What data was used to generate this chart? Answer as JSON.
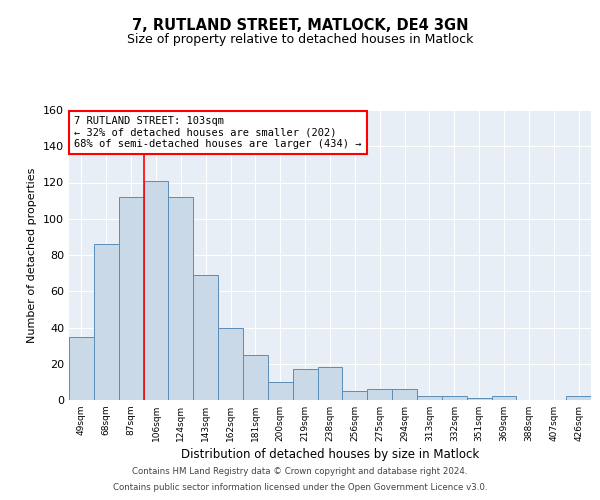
{
  "title": "7, RUTLAND STREET, MATLOCK, DE4 3GN",
  "subtitle": "Size of property relative to detached houses in Matlock",
  "xlabel": "Distribution of detached houses by size in Matlock",
  "ylabel": "Number of detached properties",
  "bin_labels": [
    "49sqm",
    "68sqm",
    "87sqm",
    "106sqm",
    "124sqm",
    "143sqm",
    "162sqm",
    "181sqm",
    "200sqm",
    "219sqm",
    "238sqm",
    "256sqm",
    "275sqm",
    "294sqm",
    "313sqm",
    "332sqm",
    "351sqm",
    "369sqm",
    "388sqm",
    "407sqm",
    "426sqm"
  ],
  "bar_heights": [
    35,
    86,
    112,
    121,
    112,
    69,
    40,
    25,
    10,
    17,
    18,
    5,
    6,
    6,
    2,
    2,
    1,
    2,
    0,
    0,
    2
  ],
  "bar_color": "#c9d9e8",
  "bar_edge_color": "#5b8db8",
  "vline_index": 3,
  "vline_color": "red",
  "annotation_text": "7 RUTLAND STREET: 103sqm\n← 32% of detached houses are smaller (202)\n68% of semi-detached houses are larger (434) →",
  "annotation_box_color": "white",
  "annotation_box_edge": "red",
  "ylim": [
    0,
    160
  ],
  "yticks": [
    0,
    20,
    40,
    60,
    80,
    100,
    120,
    140,
    160
  ],
  "background_color": "#e8eef5",
  "footer_line1": "Contains HM Land Registry data © Crown copyright and database right 2024.",
  "footer_line2": "Contains public sector information licensed under the Open Government Licence v3.0."
}
